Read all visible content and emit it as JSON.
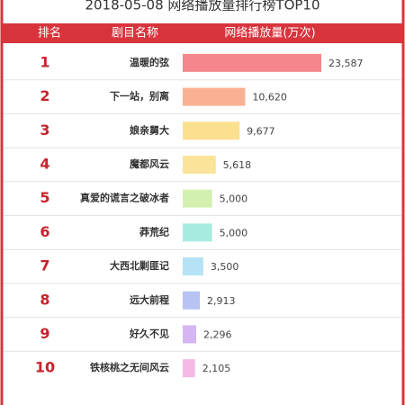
{
  "chart_data": {
    "type": "bar",
    "title": "2018-05-08 网络播放量排行榜TOP10",
    "headers": [
      "排名",
      "剧目名称",
      "网络播放量(万次)"
    ],
    "ranks": [
      1,
      2,
      3,
      4,
      5,
      6,
      7,
      8,
      9,
      10
    ],
    "categories": [
      "温暖的弦",
      "下一站，别离",
      "娘亲舅大",
      "魔都风云",
      "真爱的谎言之破冰者",
      "莽荒纪",
      "大西北剿匪记",
      "远大前程",
      "好久不见",
      "铁核桃之无间风云"
    ],
    "values": [
      23587,
      10620,
      9677,
      5618,
      5000,
      5000,
      3500,
      2913,
      2296,
      2105
    ],
    "value_labels": [
      "23,587",
      "10,620",
      "9,677",
      "5,618",
      "5,000",
      "5,000",
      "3,500",
      "2,913",
      "2,296",
      "2,105"
    ],
    "colors": [
      "#f5878c",
      "#f9b192",
      "#fbe08f",
      "#fbe39a",
      "#d3f0b0",
      "#a8ecdf",
      "#b5e3f5",
      "#b6c3f3",
      "#d5b6f3",
      "#f5b9e6"
    ]
  }
}
